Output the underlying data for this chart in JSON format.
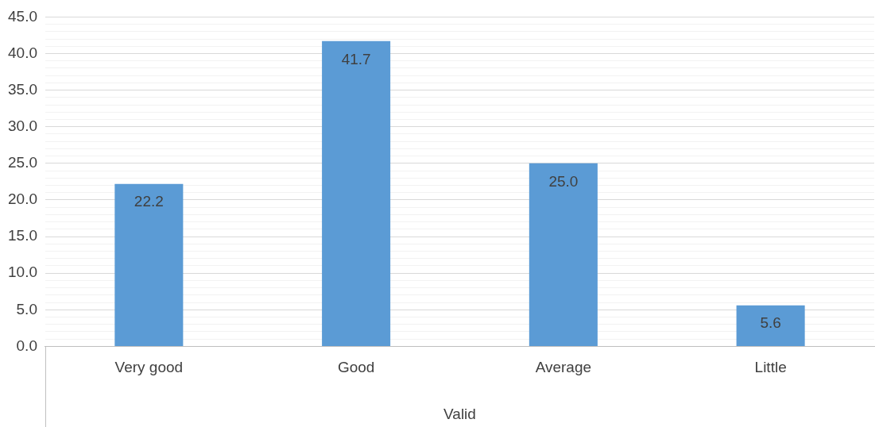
{
  "chart_data": {
    "type": "bar",
    "xlabel": "Valid",
    "categories": [
      "Very good",
      "Good",
      "Average",
      "Little"
    ],
    "values": [
      22.2,
      41.7,
      25.0,
      5.6
    ],
    "color": "#5b9bd5",
    "value_labels": [
      "22.2",
      "41.7",
      "25.0",
      "5.6"
    ],
    "ylim": [
      0,
      45
    ],
    "yticks": [
      {
        "value": 0,
        "label": "0.0"
      },
      {
        "value": 1,
        "label": null
      },
      {
        "value": 2,
        "label": null
      },
      {
        "value": 3,
        "label": null
      },
      {
        "value": 4,
        "label": null
      },
      {
        "value": 5,
        "label": "5.0"
      },
      {
        "value": 6,
        "label": null
      },
      {
        "value": 7,
        "label": null
      },
      {
        "value": 8,
        "label": null
      },
      {
        "value": 9,
        "label": null
      },
      {
        "value": 10,
        "label": "10.0"
      },
      {
        "value": 11,
        "label": null
      },
      {
        "value": 12,
        "label": null
      },
      {
        "value": 13,
        "label": null
      },
      {
        "value": 14,
        "label": null
      },
      {
        "value": 15,
        "label": "15.0"
      },
      {
        "value": 16,
        "label": null
      },
      {
        "value": 17,
        "label": null
      },
      {
        "value": 18,
        "label": null
      },
      {
        "value": 19,
        "label": null
      },
      {
        "value": 20,
        "label": "20.0"
      },
      {
        "value": 21,
        "label": null
      },
      {
        "value": 22,
        "label": null
      },
      {
        "value": 23,
        "label": null
      },
      {
        "value": 24,
        "label": null
      },
      {
        "value": 25,
        "label": "25.0"
      },
      {
        "value": 26,
        "label": null
      },
      {
        "value": 27,
        "label": null
      },
      {
        "value": 28,
        "label": null
      },
      {
        "value": 29,
        "label": null
      },
      {
        "value": 30,
        "label": "30.0"
      },
      {
        "value": 31,
        "label": null
      },
      {
        "value": 32,
        "label": null
      },
      {
        "value": 33,
        "label": null
      },
      {
        "value": 34,
        "label": null
      },
      {
        "value": 35,
        "label": "35.0"
      },
      {
        "value": 36,
        "label": null
      },
      {
        "value": 37,
        "label": null
      },
      {
        "value": 38,
        "label": null
      },
      {
        "value": 39,
        "label": null
      },
      {
        "value": 40,
        "label": "40.0"
      },
      {
        "value": 41,
        "label": null
      },
      {
        "value": 42,
        "label": null
      },
      {
        "value": 43,
        "label": null
      },
      {
        "value": 44,
        "label": null
      },
      {
        "value": 45,
        "label": "45.0"
      }
    ],
    "grid": "y",
    "legend": false
  }
}
